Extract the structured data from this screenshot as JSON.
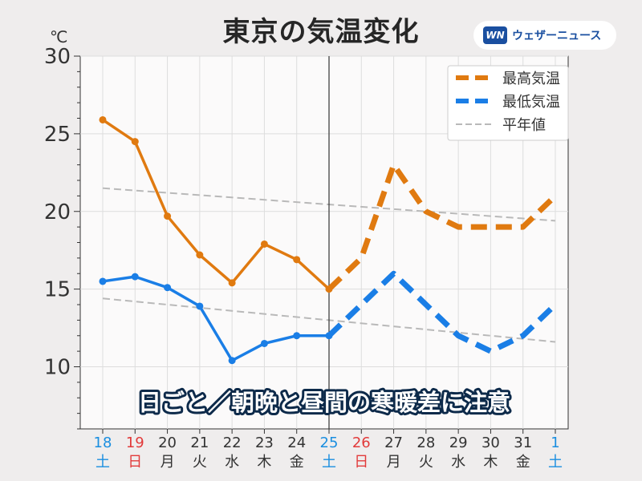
{
  "title": "東京の気温変化",
  "logo": {
    "mark": "WN",
    "text": "ウェザーニュース"
  },
  "unit": "℃",
  "banner": "日ごと／朝晩と昼間の寒暖差に注意",
  "colors": {
    "high": "#e07a10",
    "low": "#1a7ee6",
    "normal": "#b9b9b9",
    "weekday": "#333333",
    "saturday": "#1a8ee0",
    "sunday": "#e23a3a"
  },
  "chart_data": {
    "type": "line",
    "x_days": [
      "18",
      "19",
      "20",
      "21",
      "22",
      "23",
      "24",
      "25",
      "26",
      "27",
      "28",
      "29",
      "30",
      "31",
      "1"
    ],
    "x_weekdays": [
      "土",
      "日",
      "月",
      "火",
      "水",
      "木",
      "金",
      "土",
      "日",
      "月",
      "火",
      "水",
      "木",
      "金",
      "土"
    ],
    "ylim": [
      6,
      30
    ],
    "yticks": [
      10,
      15,
      20,
      25,
      30
    ],
    "grid": true,
    "split_index": 7,
    "legend_position": "top-right",
    "series": [
      {
        "name": "最高気温",
        "values": [
          25.9,
          24.5,
          19.7,
          17.2,
          15.4,
          17.9,
          16.9,
          15.0,
          17.0,
          23.0,
          20.0,
          19.0,
          19.0,
          19.0,
          21.0
        ]
      },
      {
        "name": "最低気温",
        "values": [
          15.5,
          15.8,
          15.1,
          13.9,
          10.4,
          11.5,
          12.0,
          12.0,
          14.0,
          16.0,
          14.0,
          12.0,
          11.0,
          12.0,
          14.0
        ]
      },
      {
        "name": "平年値",
        "values": [
          [
            21.5,
            19.4
          ],
          [
            14.4,
            11.6
          ]
        ]
      }
    ]
  }
}
